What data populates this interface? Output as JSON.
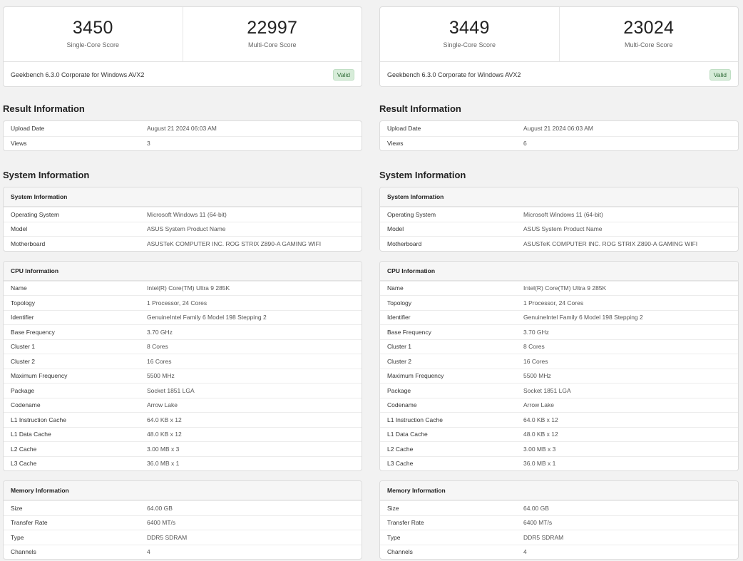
{
  "panels": [
    {
      "single_core_score": "3450",
      "single_core_label": "Single-Core Score",
      "multi_core_score": "22997",
      "multi_core_label": "Multi-Core Score",
      "version": "Geekbench 6.3.0 Corporate for Windows AVX2",
      "badge": "Valid",
      "result_title": "Result Information",
      "result_rows": [
        {
          "key": "Upload Date",
          "value": "August 21 2024 06:03 AM"
        },
        {
          "key": "Views",
          "value": "3"
        }
      ],
      "system_title": "System Information",
      "system_head": "System Information",
      "system_rows": [
        {
          "key": "Operating System",
          "value": "Microsoft Windows 11 (64-bit)"
        },
        {
          "key": "Model",
          "value": "ASUS System Product Name"
        },
        {
          "key": "Motherboard",
          "value": "ASUSTeK COMPUTER INC. ROG STRIX Z890-A GAMING WIFI"
        }
      ],
      "cpu_head": "CPU Information",
      "cpu_rows": [
        {
          "key": "Name",
          "value": "Intel(R) Core(TM) Ultra 9 285K"
        },
        {
          "key": "Topology",
          "value": "1 Processor, 24 Cores"
        },
        {
          "key": "Identifier",
          "value": "GenuineIntel Family 6 Model 198 Stepping 2"
        },
        {
          "key": "Base Frequency",
          "value": "3.70 GHz"
        },
        {
          "key": "Cluster 1",
          "value": "8 Cores"
        },
        {
          "key": "Cluster 2",
          "value": "16 Cores"
        },
        {
          "key": "Maximum Frequency",
          "value": "5500 MHz"
        },
        {
          "key": "Package",
          "value": "Socket 1851 LGA"
        },
        {
          "key": "Codename",
          "value": "Arrow Lake"
        },
        {
          "key": "L1 Instruction Cache",
          "value": "64.0 KB x 12"
        },
        {
          "key": "L1 Data Cache",
          "value": "48.0 KB x 12"
        },
        {
          "key": "L2 Cache",
          "value": "3.00 MB x 3"
        },
        {
          "key": "L3 Cache",
          "value": "36.0 MB x 1"
        }
      ],
      "memory_head": "Memory Information",
      "memory_rows": [
        {
          "key": "Size",
          "value": "64.00 GB"
        },
        {
          "key": "Transfer Rate",
          "value": "6400 MT/s"
        },
        {
          "key": "Type",
          "value": "DDR5 SDRAM"
        },
        {
          "key": "Channels",
          "value": "4"
        }
      ]
    },
    {
      "single_core_score": "3449",
      "single_core_label": "Single-Core Score",
      "multi_core_score": "23024",
      "multi_core_label": "Multi-Core Score",
      "version": "Geekbench 6.3.0 Corporate for Windows AVX2",
      "badge": "Valid",
      "result_title": "Result Information",
      "result_rows": [
        {
          "key": "Upload Date",
          "value": "August 21 2024 06:03 AM"
        },
        {
          "key": "Views",
          "value": "6"
        }
      ],
      "system_title": "System Information",
      "system_head": "System Information",
      "system_rows": [
        {
          "key": "Operating System",
          "value": "Microsoft Windows 11 (64-bit)"
        },
        {
          "key": "Model",
          "value": "ASUS System Product Name"
        },
        {
          "key": "Motherboard",
          "value": "ASUSTeK COMPUTER INC. ROG STRIX Z890-A GAMING WIFI"
        }
      ],
      "cpu_head": "CPU Information",
      "cpu_rows": [
        {
          "key": "Name",
          "value": "Intel(R) Core(TM) Ultra 9 285K"
        },
        {
          "key": "Topology",
          "value": "1 Processor, 24 Cores"
        },
        {
          "key": "Identifier",
          "value": "GenuineIntel Family 6 Model 198 Stepping 2"
        },
        {
          "key": "Base Frequency",
          "value": "3.70 GHz"
        },
        {
          "key": "Cluster 1",
          "value": "8 Cores"
        },
        {
          "key": "Cluster 2",
          "value": "16 Cores"
        },
        {
          "key": "Maximum Frequency",
          "value": "5500 MHz"
        },
        {
          "key": "Package",
          "value": "Socket 1851 LGA"
        },
        {
          "key": "Codename",
          "value": "Arrow Lake"
        },
        {
          "key": "L1 Instruction Cache",
          "value": "64.0 KB x 12"
        },
        {
          "key": "L1 Data Cache",
          "value": "48.0 KB x 12"
        },
        {
          "key": "L2 Cache",
          "value": "3.00 MB x 3"
        },
        {
          "key": "L3 Cache",
          "value": "36.0 MB x 1"
        }
      ],
      "memory_head": "Memory Information",
      "memory_rows": [
        {
          "key": "Size",
          "value": "64.00 GB"
        },
        {
          "key": "Transfer Rate",
          "value": "6400 MT/s"
        },
        {
          "key": "Type",
          "value": "DDR5 SDRAM"
        },
        {
          "key": "Channels",
          "value": "4"
        }
      ]
    }
  ]
}
